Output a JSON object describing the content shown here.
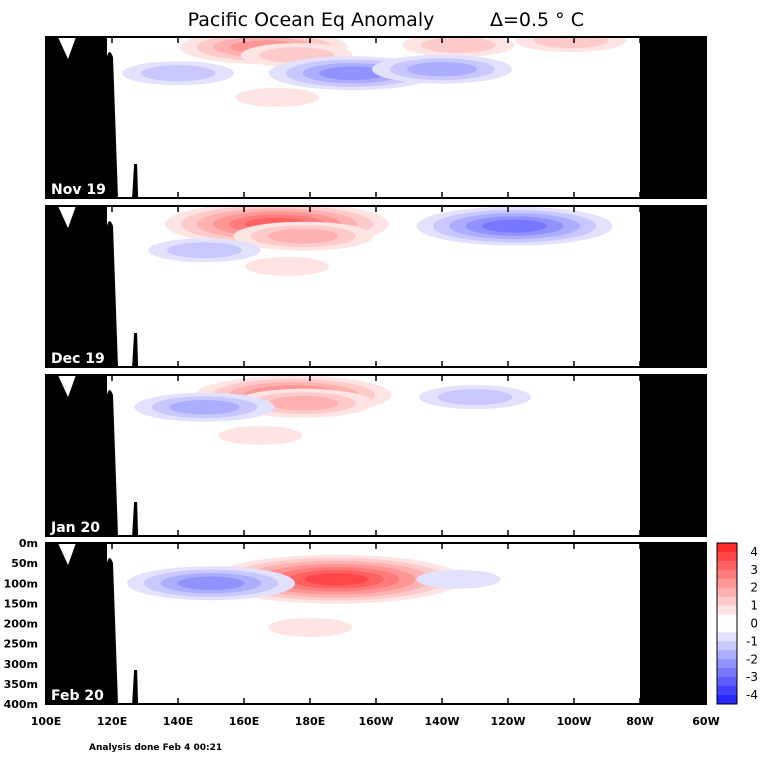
{
  "title": "Pacific Ocean Eq Anomaly",
  "interval_label": "Δ=0.5 ° C",
  "footer": "Analysis done Feb 4 00:21",
  "chart_data": {
    "type": "heatmap",
    "title": "Pacific Ocean Eq Anomaly",
    "contour_interval": "Δ=0.5 ° C",
    "x_ticks": [
      "100E",
      "120E",
      "140E",
      "160E",
      "180E",
      "160W",
      "140W",
      "120W",
      "100W",
      "80W",
      "60W"
    ],
    "y_ticks": [
      "0m",
      "50m",
      "100m",
      "150m",
      "200m",
      "250m",
      "300m",
      "350m",
      "400m"
    ],
    "xlim": [
      "100E",
      "60W"
    ],
    "ylim": [
      "0m",
      "400m"
    ],
    "colorbar": {
      "ticks": [
        "4",
        "3",
        "2",
        "1",
        "0",
        "-1",
        "-2",
        "-3",
        "-4"
      ],
      "levels": [
        {
          "v": 4.25,
          "color": "#ff2a2a"
        },
        {
          "v": 3.75,
          "color": "#ff4545"
        },
        {
          "v": 3.25,
          "color": "#ff6060"
        },
        {
          "v": 2.75,
          "color": "#ff7b7b"
        },
        {
          "v": 2.25,
          "color": "#ff9696"
        },
        {
          "v": 1.75,
          "color": "#ffb0b0"
        },
        {
          "v": 1.25,
          "color": "#ffcaca"
        },
        {
          "v": 0.75,
          "color": "#ffe4e4"
        },
        {
          "v": 0.25,
          "color": "#ffffff"
        },
        {
          "v": -0.25,
          "color": "#ffffff"
        },
        {
          "v": -0.75,
          "color": "#e2e2ff"
        },
        {
          "v": -1.25,
          "color": "#c8c8ff"
        },
        {
          "v": -1.75,
          "color": "#adadff"
        },
        {
          "v": -2.25,
          "color": "#9292ff"
        },
        {
          "v": -2.75,
          "color": "#7777ff"
        },
        {
          "v": -3.25,
          "color": "#5c5cff"
        },
        {
          "v": -3.75,
          "color": "#4141ff"
        },
        {
          "v": -4.25,
          "color": "#2626ff"
        }
      ]
    },
    "panels": [
      {
        "label": "Nov 19",
        "features": [
          {
            "lon": 166,
            "depth": 25,
            "value": 2.0
          },
          {
            "lon": 176,
            "depth": 45,
            "value": 1.0
          },
          {
            "lon": 225,
            "depth": 20,
            "value": 1.0
          },
          {
            "lon": 259,
            "depth": 8,
            "value": 1.0
          },
          {
            "lon": 140,
            "depth": 90,
            "value": -1.0
          },
          {
            "lon": 193,
            "depth": 90,
            "value": -2.0
          },
          {
            "lon": 220,
            "depth": 80,
            "value": -1.5
          },
          {
            "lon": 170,
            "depth": 150,
            "value": 0.5
          }
        ]
      },
      {
        "label": "Dec 19",
        "features": [
          {
            "lon": 170,
            "depth": 45,
            "value": 3.0
          },
          {
            "lon": 178,
            "depth": 75,
            "value": 1.5
          },
          {
            "lon": 242,
            "depth": 50,
            "value": -2.5
          },
          {
            "lon": 148,
            "depth": 110,
            "value": -1.0
          },
          {
            "lon": 173,
            "depth": 150,
            "value": 0.5
          }
        ]
      },
      {
        "label": "Jan 20",
        "features": [
          {
            "lon": 175,
            "depth": 50,
            "value": 2.5
          },
          {
            "lon": 178,
            "depth": 70,
            "value": 1.5
          },
          {
            "lon": 148,
            "depth": 80,
            "value": -1.5
          },
          {
            "lon": 230,
            "depth": 55,
            "value": -1.0
          },
          {
            "lon": 165,
            "depth": 150,
            "value": 0.5
          }
        ]
      },
      {
        "label": "Feb 20",
        "features": [
          {
            "lon": 188,
            "depth": 90,
            "value": 3.5
          },
          {
            "lon": 150,
            "depth": 100,
            "value": -2.0
          },
          {
            "lon": 180,
            "depth": 210,
            "value": 0.5
          },
          {
            "lon": 225,
            "depth": 90,
            "value": -0.5
          }
        ]
      }
    ]
  }
}
